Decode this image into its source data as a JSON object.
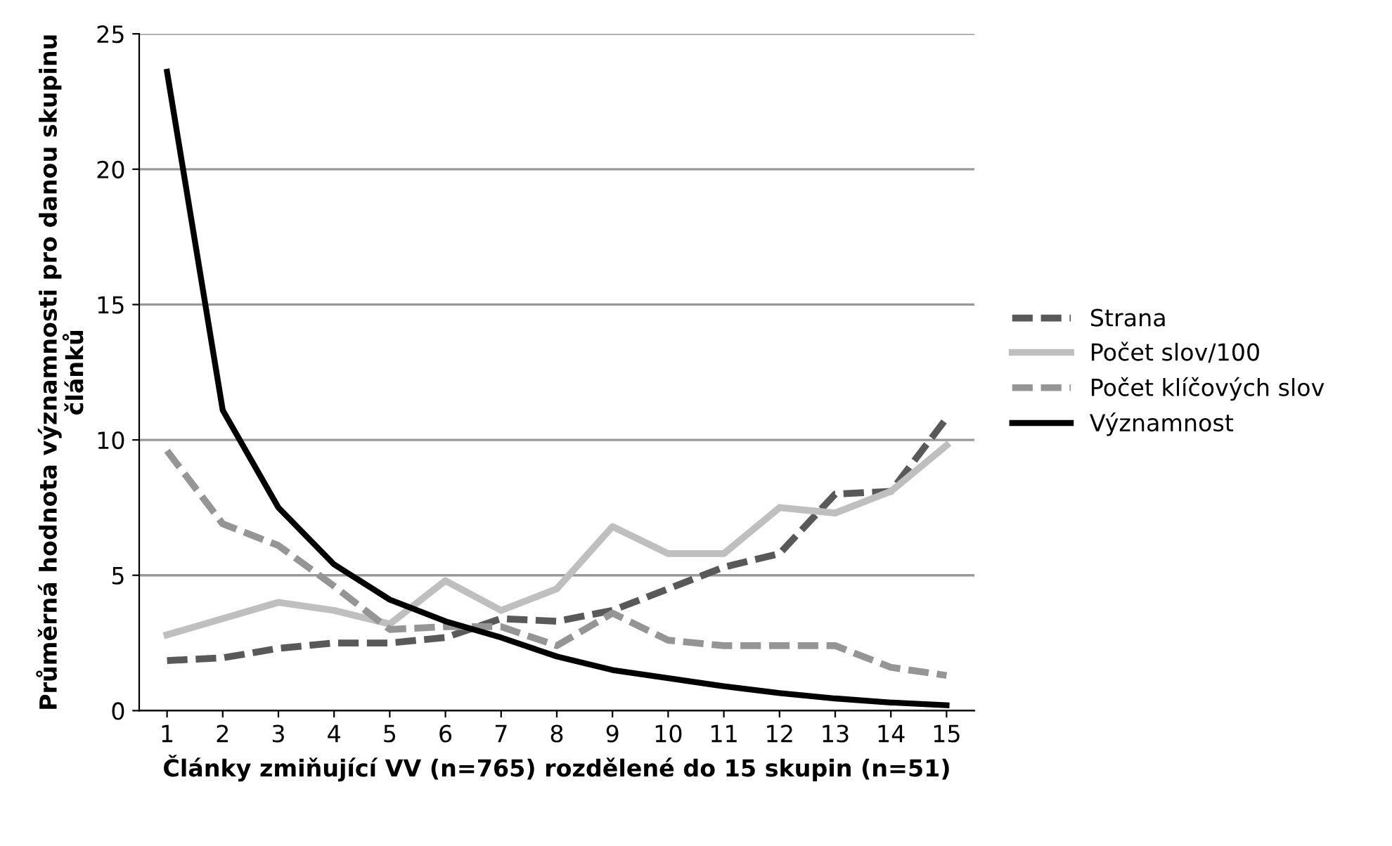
{
  "chart_data": {
    "type": "line",
    "ylabel": "Průměrná hodnota významnosti pro danou skupinu článků",
    "xlabel": "Články zmiňující VV (n=765) rozdělené do 15 skupin (n=51)",
    "categories": [
      "1",
      "2",
      "3",
      "4",
      "5",
      "6",
      "7",
      "8",
      "9",
      "10",
      "11",
      "12",
      "13",
      "14",
      "15"
    ],
    "series": [
      {
        "name": "Strana",
        "color": "#595959",
        "line_style": "dashed",
        "values": [
          1.85,
          1.95,
          2.3,
          2.5,
          2.5,
          2.7,
          3.4,
          3.3,
          3.7,
          4.5,
          5.3,
          5.8,
          8.0,
          8.1,
          10.8
        ]
      },
      {
        "name": "Počet slov/100",
        "color": "#bfbfbf",
        "line_style": "solid",
        "values": [
          2.8,
          3.4,
          4.0,
          3.7,
          3.2,
          4.8,
          3.7,
          4.5,
          6.8,
          5.8,
          5.8,
          7.5,
          7.3,
          8.1,
          9.8
        ]
      },
      {
        "name": "Počet klíčových slov",
        "color": "#959595",
        "line_style": "dashed",
        "values": [
          9.6,
          6.9,
          6.1,
          4.6,
          3.0,
          3.1,
          3.1,
          2.4,
          3.6,
          2.6,
          2.4,
          2.4,
          2.4,
          1.6,
          1.3
        ]
      },
      {
        "name": "Významnost",
        "color": "#000000",
        "line_style": "solid",
        "values": [
          23.6,
          11.1,
          7.5,
          5.4,
          4.1,
          3.3,
          2.7,
          2.0,
          1.5,
          1.2,
          0.9,
          0.65,
          0.45,
          0.3,
          0.2
        ]
      }
    ],
    "ylim": [
      0,
      25
    ],
    "yticks": [
      0,
      5,
      10,
      15,
      20,
      25
    ],
    "grid": "y",
    "legend": "right",
    "marker": "none"
  }
}
